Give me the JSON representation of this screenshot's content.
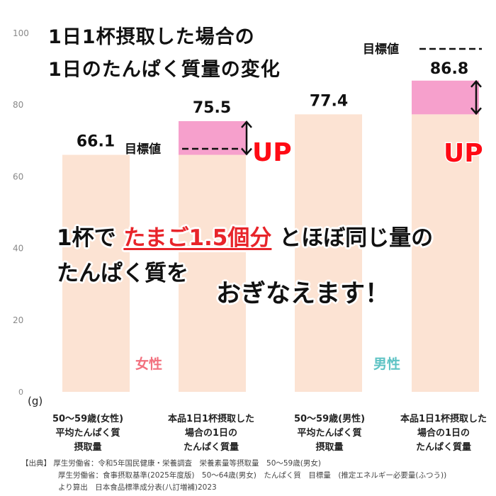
{
  "title": {
    "line1": "1日1杯摂取した場合の",
    "line2": "1日のたんぱく質量の変化"
  },
  "chart_data": {
    "type": "bar",
    "unit": "(g)",
    "ylim": [
      0,
      100
    ],
    "yticks": [
      0,
      20,
      40,
      60,
      80,
      100
    ],
    "categories": [
      "50～59歳(女性) 平均たんぱく質 摂取量",
      "本品1日1杯摂取した 場合の1日の たんぱく質量",
      "50～59歳(男性) 平均たんぱく質 摂取量",
      "本品1日1杯摂取した 場合の1日の たんぱく質量"
    ],
    "values": [
      66.1,
      75.5,
      77.4,
      86.8
    ],
    "target_lines": [
      65,
      77
    ],
    "target_label": "目標値",
    "up_label": "UP",
    "groups": [
      {
        "name": "女性",
        "color": "#f2707e"
      },
      {
        "name": "男性",
        "color": "#5ec3c4"
      }
    ],
    "colors": {
      "bar": "#fce3d3",
      "increase": "#f6a0cc",
      "arrow": "#111111"
    }
  },
  "category_labels": [
    {
      "line1": "50～59歳(女性)",
      "line2": "平均たんぱく質",
      "line3": "摂取量"
    },
    {
      "line1": "本品1日1杯摂取した",
      "line2": "場合の1日の",
      "line3": "たんぱく質量"
    },
    {
      "line1": "50～59歳(男性)",
      "line2": "平均たんぱく質",
      "line3": "摂取量"
    },
    {
      "line1": "本品1日1杯摂取した",
      "line2": "場合の1日の",
      "line3": "たんぱく質量"
    }
  ],
  "message": {
    "part1": "1杯で",
    "highlight": "たまご1.5個分",
    "part2": "とほぼ同じ量の",
    "line2": "たんぱく質を",
    "line3": "おぎなえます！"
  },
  "source": {
    "line1": "【出典】 厚生労働省：令和5年国民健康・栄養調査　栄養素量等摂取量　50～59歳(男女)",
    "line2": "厚生労働省：食事摂取基準(2025年度版)　50～64歳(男女)　たんぱく質　目標量　(推定エネルギー必要量(ふつう))",
    "line3": "より算出　日本食品標準成分表(八訂増補)2023"
  }
}
